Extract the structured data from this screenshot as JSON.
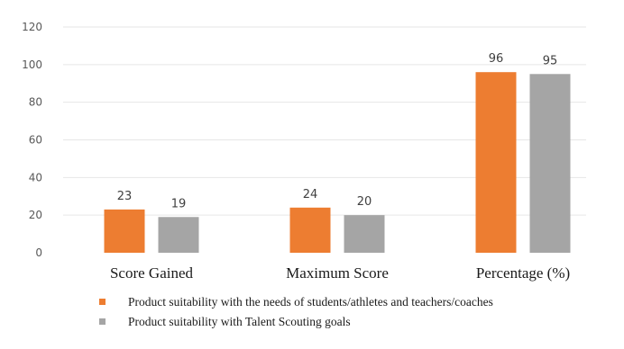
{
  "chart_data": {
    "type": "bar",
    "title": "",
    "xlabel": "",
    "ylabel": "",
    "categories": [
      "Score Gained",
      "Maximum Score",
      "Percentage (%)"
    ],
    "series": [
      {
        "name": "Product suitability with the needs of students/athletes and teachers/coaches",
        "values": [
          23,
          24,
          96
        ],
        "color": "#ED7D31"
      },
      {
        "name": "Product suitability with Talent Scouting goals",
        "values": [
          19,
          20,
          95
        ],
        "color": "#A5A5A5"
      }
    ],
    "ylim": [
      0,
      120
    ],
    "yticks": [
      0,
      20,
      40,
      60,
      80,
      100,
      120
    ],
    "ytick_labels": [
      "0",
      "20",
      "40",
      "60",
      "80",
      "100",
      "120"
    ],
    "grid": true,
    "legend_position": "bottom"
  }
}
